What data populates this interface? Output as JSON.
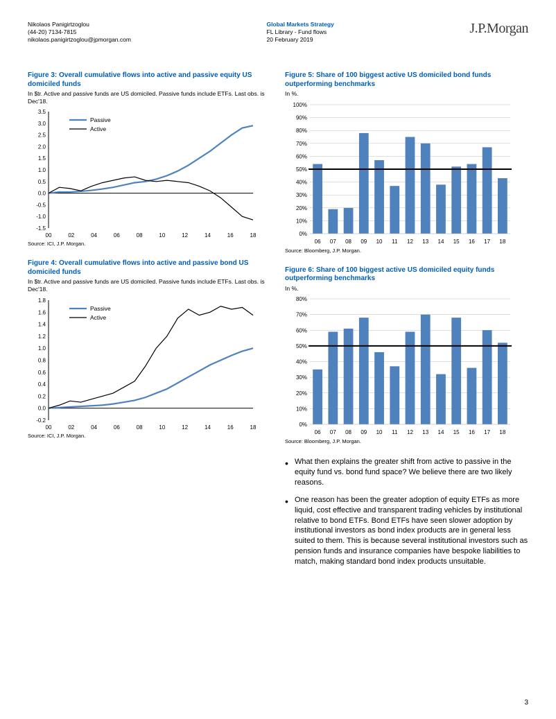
{
  "header": {
    "author": "Nikolaos Panigirtzoglou",
    "phone": "(44-20) 7134-7815",
    "email": "nikolaos.panigirtzoglou@jpmorgan.com",
    "center_title": "Global Markets Strategy",
    "center_line2": "FL Library - Fund flows",
    "center_line3": "20 February 2019",
    "logo": "J.P.Morgan"
  },
  "fig3": {
    "title": "Figure 3: Overall cumulative flows into active and passive equity US domiciled funds",
    "sub": "In $tr. Active and passive funds are US domiciled. Passive funds include ETFs. Last obs. is Dec'18.",
    "source": "Source: ICI, J.P. Morgan.",
    "type": "line",
    "ymin": -1.5,
    "ymax": 3.5,
    "ystep": 0.5,
    "xticks": [
      "00",
      "02",
      "04",
      "06",
      "08",
      "10",
      "12",
      "14",
      "16",
      "18"
    ],
    "legend": [
      {
        "label": "Passive",
        "color": "#4f81bd"
      },
      {
        "label": "Active",
        "color": "#000000"
      }
    ],
    "series": {
      "passive_color": "#4f81bd",
      "active_color": "#000000",
      "x_years": [
        0,
        1,
        2,
        3,
        4,
        5,
        6,
        7,
        8,
        9,
        10,
        11,
        12,
        13,
        14,
        15,
        16,
        17,
        18,
        19
      ],
      "passive": [
        0.0,
        0.05,
        0.05,
        0.08,
        0.12,
        0.18,
        0.25,
        0.35,
        0.45,
        0.5,
        0.6,
        0.75,
        0.95,
        1.2,
        1.5,
        1.8,
        2.15,
        2.5,
        2.8,
        2.9
      ],
      "active": [
        0.0,
        0.25,
        0.2,
        0.1,
        0.3,
        0.45,
        0.55,
        0.65,
        0.7,
        0.55,
        0.5,
        0.55,
        0.5,
        0.45,
        0.3,
        0.1,
        -0.2,
        -0.6,
        -1.0,
        -1.15
      ]
    }
  },
  "fig4": {
    "title": "Figure 4: Overall cumulative flows into active and passive bond US domiciled funds",
    "sub": "In $tr. Active and passive funds are US domiciled. Passive funds include ETFs. Last obs. is Dec'18.",
    "source": "Source: ICI, J.P. Morgan.",
    "type": "line",
    "ymin": -0.2,
    "ymax": 1.8,
    "ystep": 0.2,
    "xticks": [
      "00",
      "02",
      "04",
      "06",
      "08",
      "10",
      "12",
      "14",
      "16",
      "18"
    ],
    "legend": [
      {
        "label": "Passive",
        "color": "#4f81bd"
      },
      {
        "label": "Active",
        "color": "#000000"
      }
    ],
    "series": {
      "passive_color": "#4f81bd",
      "active_color": "#000000",
      "x_years": [
        0,
        1,
        2,
        3,
        4,
        5,
        6,
        7,
        8,
        9,
        10,
        11,
        12,
        13,
        14,
        15,
        16,
        17,
        18,
        19
      ],
      "passive": [
        0.0,
        0.01,
        0.02,
        0.03,
        0.04,
        0.05,
        0.07,
        0.1,
        0.13,
        0.18,
        0.25,
        0.32,
        0.42,
        0.52,
        0.62,
        0.72,
        0.8,
        0.88,
        0.95,
        1.0
      ],
      "active": [
        0.0,
        0.05,
        0.12,
        0.1,
        0.15,
        0.2,
        0.25,
        0.35,
        0.45,
        0.7,
        1.0,
        1.2,
        1.5,
        1.65,
        1.55,
        1.6,
        1.7,
        1.65,
        1.68,
        1.55
      ]
    }
  },
  "fig5": {
    "title": "Figure 5: Share of 100 biggest active US domiciled bond funds outperforming benchmarks",
    "sub": "In %.",
    "source": "Source: Bloomberg, J.P. Morgan.",
    "type": "bar",
    "ymin": 0,
    "ymax": 100,
    "ystep": 10,
    "ysuffix": "%",
    "reference_line": 50,
    "reference_color": "#000000",
    "bar_color": "#4f81bd",
    "categories": [
      "06",
      "07",
      "08",
      "09",
      "10",
      "11",
      "12",
      "13",
      "14",
      "15",
      "16",
      "17",
      "18"
    ],
    "values": [
      54,
      19,
      20,
      78,
      57,
      37,
      75,
      70,
      38,
      52,
      54,
      67,
      43
    ]
  },
  "fig6": {
    "title": "Figure 6: Share of 100 biggest active US domiciled equity funds outperforming benchmarks",
    "sub": "In %.",
    "source": "Source: Bloomberg, J.P. Morgan.",
    "type": "bar",
    "ymin": 0,
    "ymax": 80,
    "ystep": 10,
    "ysuffix": "%",
    "reference_line": 50,
    "reference_color": "#000000",
    "bar_color": "#4f81bd",
    "categories": [
      "06",
      "07",
      "08",
      "09",
      "10",
      "11",
      "12",
      "13",
      "14",
      "15",
      "16",
      "17",
      "18"
    ],
    "values": [
      35,
      59,
      61,
      68,
      46,
      37,
      59,
      70,
      32,
      68,
      36,
      60,
      52
    ]
  },
  "body": {
    "para1": "What then explains the greater shift from active to passive in the equity fund vs. bond fund space? We believe there are two likely reasons.",
    "para2": "One reason has been the greater adoption of equity ETFs as more liquid, cost effective and transparent trading vehicles by institutional relative to bond ETFs. Bond ETFs have seen slower adoption by institutional investors as bond index products are in general less suited to them. This is because several institutional investors such as pension funds and insurance companies have bespoke liabilities to match, making standard bond index products unsuitable."
  },
  "page_number": "3"
}
